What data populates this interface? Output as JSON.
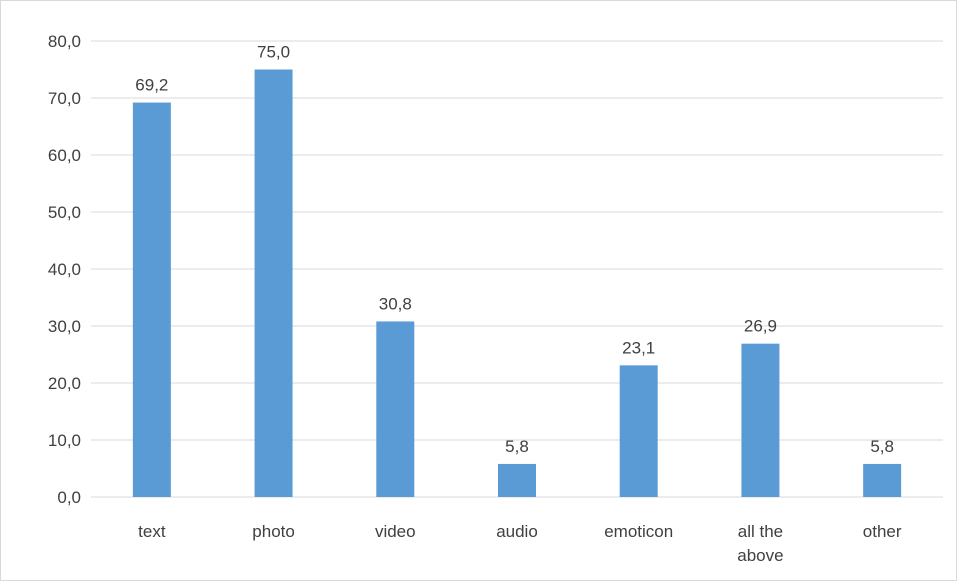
{
  "chart_data": {
    "type": "bar",
    "categories": [
      "text",
      "photo",
      "video",
      "audio",
      "emoticon",
      "all the above",
      "other"
    ],
    "values": [
      69.2,
      75.0,
      30.8,
      5.8,
      23.1,
      26.9,
      5.8
    ],
    "data_labels": [
      "69,2",
      "75,0",
      "30,8",
      "5,8",
      "23,1",
      "26,9",
      "5,8"
    ],
    "y_tick_values": [
      0,
      10,
      20,
      30,
      40,
      50,
      60,
      70,
      80
    ],
    "y_tick_labels": [
      "0,0",
      "10,0",
      "20,0",
      "30,0",
      "40,0",
      "50,0",
      "60,0",
      "70,0",
      "80,0"
    ],
    "ylim": [
      0,
      80
    ],
    "grid": true,
    "legend": "none",
    "bar_color": "#5b9bd5",
    "grid_color": "#d9d9d9"
  }
}
